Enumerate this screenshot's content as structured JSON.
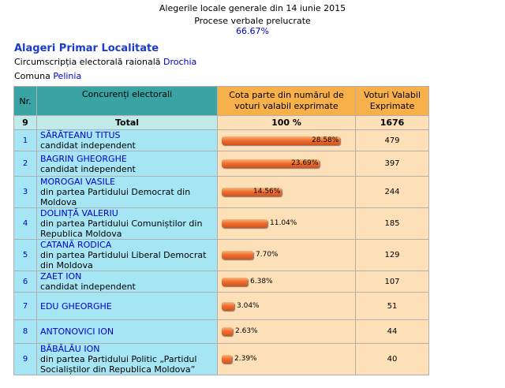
{
  "header": {
    "title": "Alegerile locale generale din 14 iunie 2015",
    "subtitle": "Procese verbale prelucrate",
    "processed": "66.67%"
  },
  "section": {
    "title": "Alageri Primar Localitate",
    "circ_label": "Circumscripția electorală raională",
    "circ_value": "Drochia",
    "comuna_label": "Comuna",
    "comuna_value": "Pelinia"
  },
  "table": {
    "headers": {
      "nr": "Nr.",
      "candidates": "Concurenți electorali",
      "share": "Cota parte din numărul de voturi valabil exprimate",
      "votes": "Voturi Valabil Exprimate"
    },
    "total": {
      "nr": "9",
      "label": "Total",
      "share": "100 %",
      "votes": "1676"
    },
    "rows": [
      {
        "nr": "1",
        "name": "SĂRĂTEANU TITUS",
        "party": "candidat independent",
        "pct": 28.58,
        "pct_label": "28.58%",
        "votes": "479"
      },
      {
        "nr": "2",
        "name": "BAGRIN GHEORGHE",
        "party": "candidat independent",
        "pct": 23.69,
        "pct_label": "23.69%",
        "votes": "397"
      },
      {
        "nr": "3",
        "name": "MOROGAI VASILE",
        "party": "din partea Partidului Democrat din Moldova",
        "pct": 14.56,
        "pct_label": "14.56%",
        "votes": "244"
      },
      {
        "nr": "4",
        "name": "DOLINȚĂ VALERIU",
        "party": "din partea Partidului Comuniștilor din Republica Moldova",
        "pct": 11.04,
        "pct_label": "11.04%",
        "votes": "185"
      },
      {
        "nr": "5",
        "name": "CATANĂ RODICA",
        "party": "din partea Partidului Liberal Democrat din Moldova",
        "pct": 7.7,
        "pct_label": "7.70%",
        "votes": "129"
      },
      {
        "nr": "6",
        "name": "ZAET ION",
        "party": "candidat independent",
        "pct": 6.38,
        "pct_label": "6.38%",
        "votes": "107"
      },
      {
        "nr": "7",
        "name": "EDU GHEORGHE",
        "party": "",
        "pct": 3.04,
        "pct_label": "3.04%",
        "votes": "51"
      },
      {
        "nr": "8",
        "name": "ANTONOVICI ION",
        "party": "",
        "pct": 2.63,
        "pct_label": "2.63%",
        "votes": "44"
      },
      {
        "nr": "9",
        "name": "BĂBĂLĂU ION",
        "party": "din partea Partidului Politic „Partidul Socialiștilor din Republica Moldova”",
        "pct": 2.39,
        "pct_label": "2.39%",
        "votes": "40"
      }
    ]
  },
  "colors": {
    "link": "#0000cc",
    "header_teal": "#3aa3a3",
    "header_orange": "#f7b04a",
    "row_cyan": "#a6e6f4",
    "row_peach": "#fde0b8",
    "bar": "#f07030"
  }
}
